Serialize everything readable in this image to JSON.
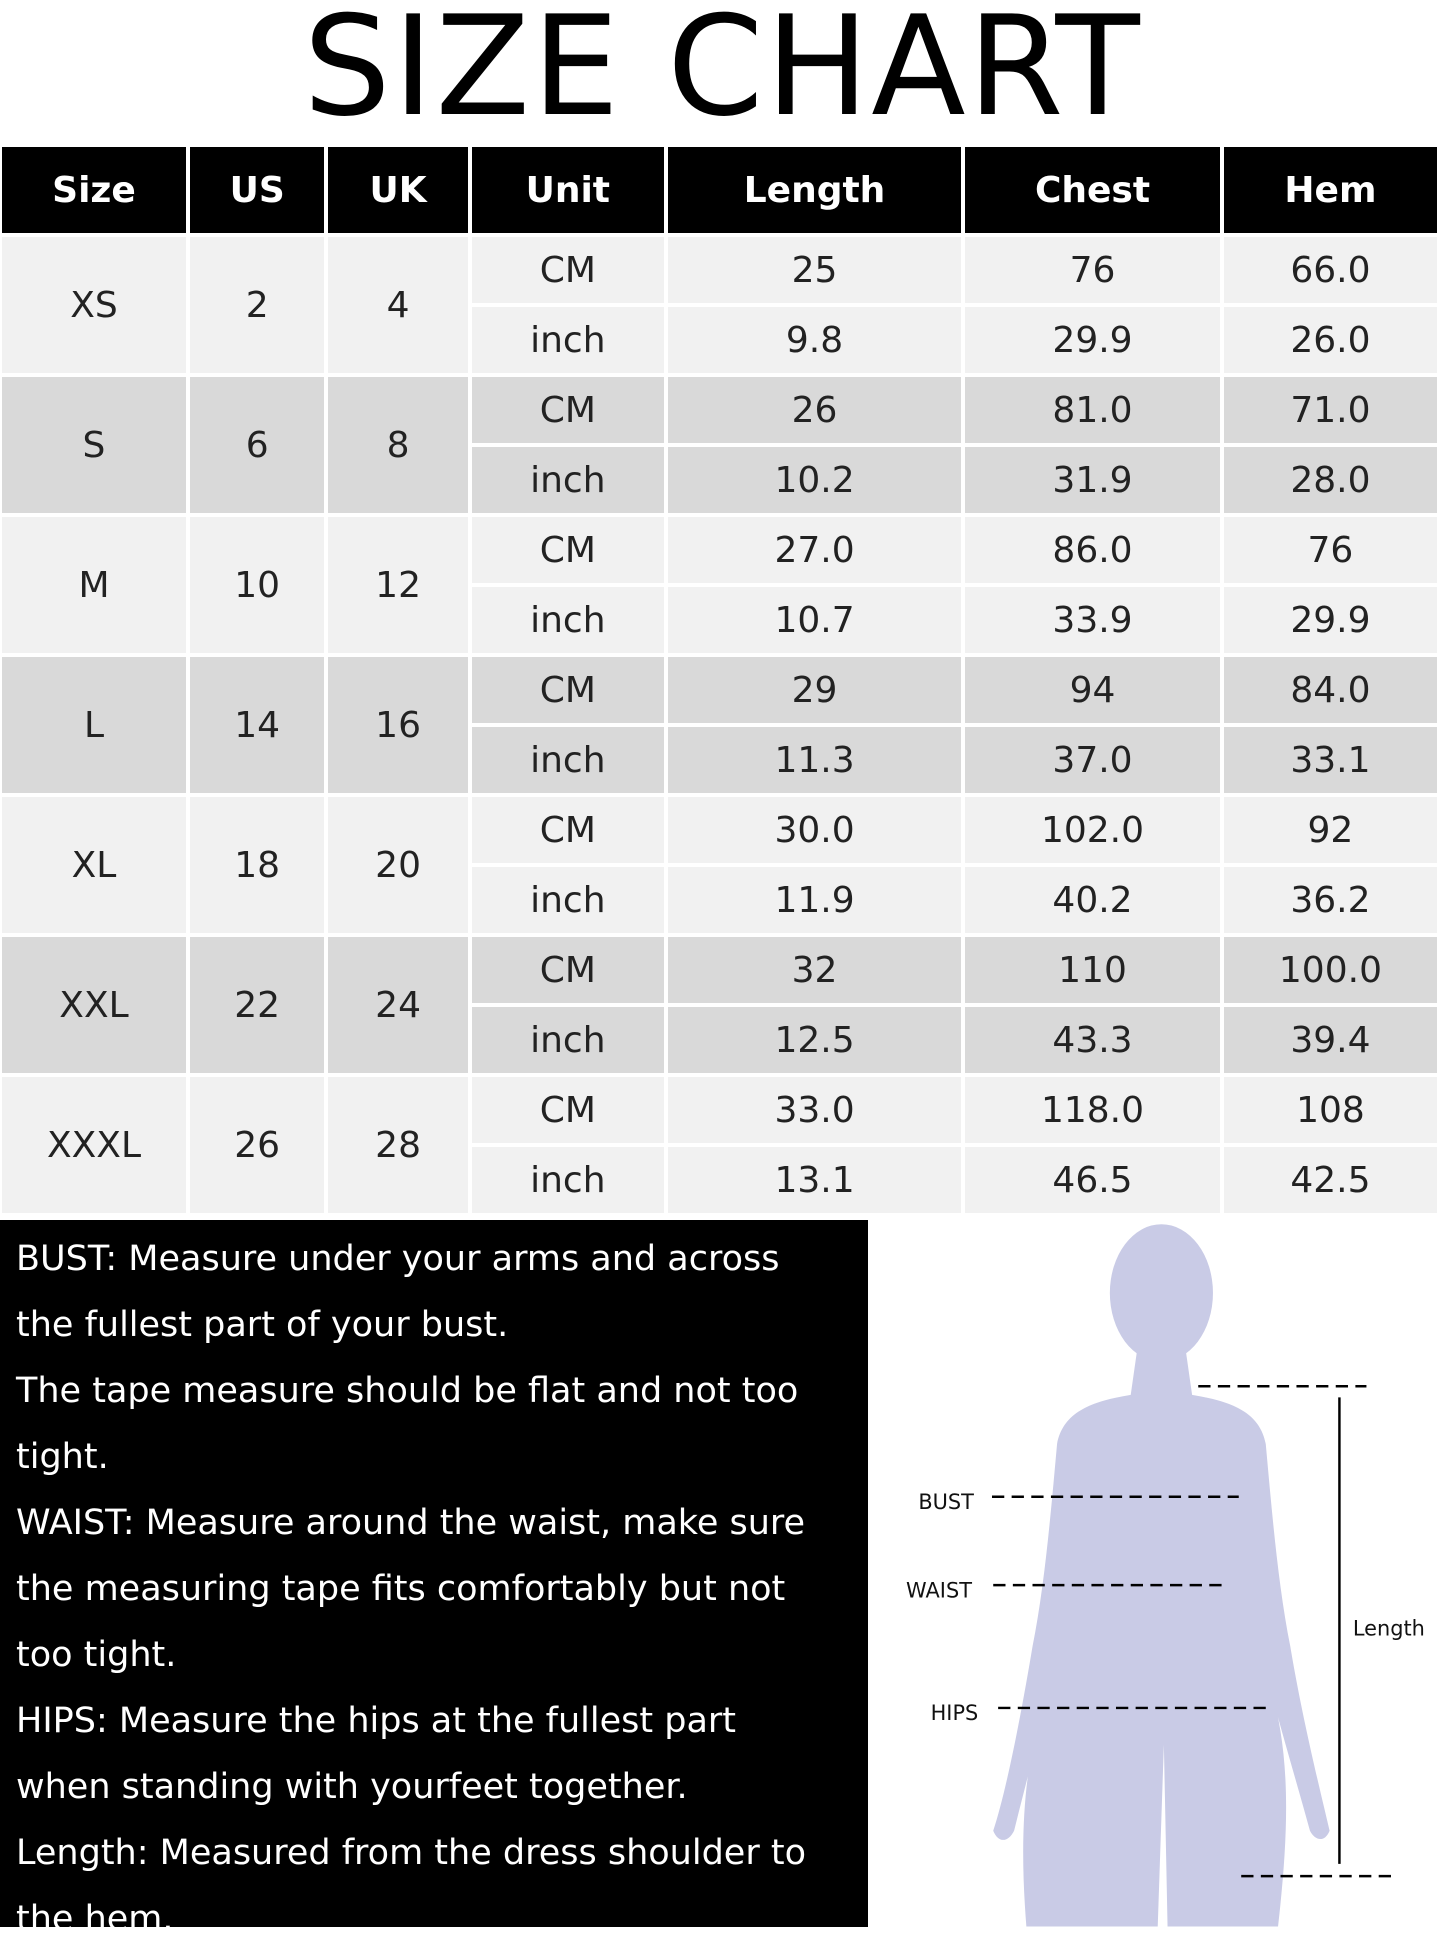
{
  "title": "SIZE CHART",
  "table": {
    "headers": [
      "Size",
      "US",
      "UK",
      "Unit",
      "Length",
      "Chest",
      "Hem"
    ],
    "rows": [
      {
        "size": "XS",
        "us": "2",
        "uk": "4",
        "cm": [
          "25",
          "76",
          "66.0"
        ],
        "inch": [
          "9.8",
          "29.9",
          "26.0"
        ]
      },
      {
        "size": "S",
        "us": "6",
        "uk": "8",
        "cm": [
          "26",
          "81.0",
          "71.0"
        ],
        "inch": [
          "10.2",
          "31.9",
          "28.0"
        ]
      },
      {
        "size": "M",
        "us": "10",
        "uk": "12",
        "cm": [
          "27.0",
          "86.0",
          "76"
        ],
        "inch": [
          "10.7",
          "33.9",
          "29.9"
        ]
      },
      {
        "size": "L",
        "us": "14",
        "uk": "16",
        "cm": [
          "29",
          "94",
          "84.0"
        ],
        "inch": [
          "11.3",
          "37.0",
          "33.1"
        ]
      },
      {
        "size": "XL",
        "us": "18",
        "uk": "20",
        "cm": [
          "30.0",
          "102.0",
          "92"
        ],
        "inch": [
          "11.9",
          "40.2",
          "36.2"
        ]
      },
      {
        "size": "XXL",
        "us": "22",
        "uk": "24",
        "cm": [
          "32",
          "110",
          "100.0"
        ],
        "inch": [
          "12.5",
          "43.3",
          "39.4"
        ]
      },
      {
        "size": "XXXL",
        "us": "26",
        "uk": "28",
        "cm": [
          "33.0",
          "118.0",
          "108"
        ],
        "inch": [
          "13.1",
          "46.5",
          "42.5"
        ]
      }
    ],
    "unit_cm": "CM",
    "unit_inch": "inch"
  },
  "notes": [
    "BUST: Measure under your arms and across",
    "the fullest part of your bust.",
    "The tape measure should be flat and not too",
    "tight.",
    "WAIST: Measure around the waist, make sure",
    "the measuring tape fits comfortably but not",
    "too tight.",
    "HIPS: Measure the hips at the fullest part",
    "when standing with yourfeet together.",
    "Length: Measured from the dress shoulder to",
    "the hem."
  ],
  "figure": {
    "bust": "BUST",
    "waist": "WAIST",
    "hips": "HIPS",
    "length": "Length",
    "silhouette_color": "#c9cbe6"
  }
}
